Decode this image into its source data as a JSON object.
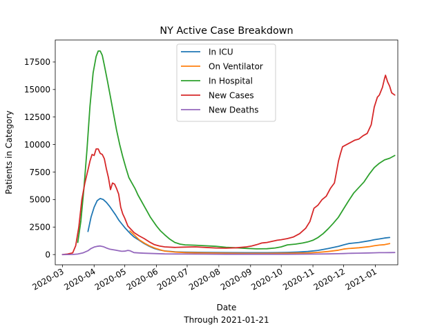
{
  "chart_data": {
    "type": "line",
    "title": "NY Active Case Breakdown",
    "xlabel": "Date",
    "xlabel_note": "Through 2021-01-21",
    "ylabel": "Patients in Category",
    "x_ticks": [
      "2020-03",
      "2020-04",
      "2020-05",
      "2020-06",
      "2020-07",
      "2020-08",
      "2020-09",
      "2020-10",
      "2020-11",
      "2020-12",
      "2021-01"
    ],
    "x_tick_positions": [
      0,
      31,
      61,
      92,
      122,
      153,
      184,
      214,
      245,
      275,
      306
    ],
    "y_ticks": [
      "0",
      "2500",
      "5000",
      "7500",
      "10000",
      "12500",
      "15000",
      "17500"
    ],
    "y_tick_values": [
      0,
      2500,
      5000,
      7500,
      10000,
      12500,
      15000,
      17500
    ],
    "xlim": [
      -7,
      328
    ],
    "ylim": [
      -930,
      19500
    ],
    "legend_position": "upper-center",
    "series": [
      {
        "name": "In ICU",
        "color": "#1f77b4",
        "points": [
          [
            25,
            2100
          ],
          [
            28,
            3400
          ],
          [
            31,
            4300
          ],
          [
            34,
            4900
          ],
          [
            37,
            5100
          ],
          [
            40,
            5000
          ],
          [
            43,
            4750
          ],
          [
            46,
            4400
          ],
          [
            49,
            4000
          ],
          [
            52,
            3600
          ],
          [
            55,
            3150
          ],
          [
            58,
            2800
          ],
          [
            61,
            2450
          ],
          [
            64,
            2150
          ],
          [
            67,
            1850
          ],
          [
            70,
            1600
          ],
          [
            75,
            1300
          ],
          [
            80,
            1000
          ],
          [
            85,
            750
          ],
          [
            90,
            550
          ],
          [
            95,
            420
          ],
          [
            100,
            330
          ],
          [
            110,
            250
          ],
          [
            120,
            220
          ],
          [
            140,
            200
          ],
          [
            160,
            180
          ],
          [
            180,
            170
          ],
          [
            200,
            170
          ],
          [
            210,
            180
          ],
          [
            220,
            200
          ],
          [
            230,
            230
          ],
          [
            240,
            280
          ],
          [
            250,
            380
          ],
          [
            260,
            550
          ],
          [
            270,
            750
          ],
          [
            275,
            880
          ],
          [
            280,
            1000
          ],
          [
            290,
            1100
          ],
          [
            300,
            1250
          ],
          [
            305,
            1350
          ],
          [
            310,
            1420
          ],
          [
            315,
            1500
          ],
          [
            320,
            1550
          ]
        ]
      },
      {
        "name": "On Ventilator",
        "color": "#ff7f0e",
        "points": [
          [
            66,
            2150
          ],
          [
            70,
            1800
          ],
          [
            75,
            1350
          ],
          [
            80,
            1050
          ],
          [
            85,
            800
          ],
          [
            90,
            600
          ],
          [
            95,
            450
          ],
          [
            100,
            320
          ],
          [
            110,
            230
          ],
          [
            120,
            180
          ],
          [
            140,
            150
          ],
          [
            160,
            130
          ],
          [
            180,
            110
          ],
          [
            200,
            110
          ],
          [
            220,
            120
          ],
          [
            240,
            150
          ],
          [
            250,
            200
          ],
          [
            260,
            280
          ],
          [
            270,
            400
          ],
          [
            275,
            500
          ],
          [
            280,
            550
          ],
          [
            290,
            620
          ],
          [
            300,
            720
          ],
          [
            305,
            800
          ],
          [
            310,
            860
          ],
          [
            315,
            900
          ],
          [
            320,
            1000
          ]
        ]
      },
      {
        "name": "In Hospital",
        "color": "#2ca02c",
        "points": [
          [
            15,
            1100
          ],
          [
            18,
            3000
          ],
          [
            21,
            6000
          ],
          [
            24,
            9500
          ],
          [
            27,
            13500
          ],
          [
            30,
            16500
          ],
          [
            33,
            18000
          ],
          [
            35,
            18500
          ],
          [
            37,
            18500
          ],
          [
            39,
            18100
          ],
          [
            41,
            17200
          ],
          [
            44,
            15800
          ],
          [
            47,
            14300
          ],
          [
            50,
            12800
          ],
          [
            53,
            11300
          ],
          [
            56,
            10000
          ],
          [
            59,
            8900
          ],
          [
            62,
            7900
          ],
          [
            65,
            7000
          ],
          [
            68,
            6500
          ],
          [
            71,
            6000
          ],
          [
            74,
            5400
          ],
          [
            77,
            4900
          ],
          [
            80,
            4400
          ],
          [
            83,
            3900
          ],
          [
            86,
            3400
          ],
          [
            89,
            3000
          ],
          [
            92,
            2600
          ],
          [
            96,
            2150
          ],
          [
            100,
            1800
          ],
          [
            105,
            1400
          ],
          [
            110,
            1100
          ],
          [
            115,
            950
          ],
          [
            120,
            880
          ],
          [
            130,
            850
          ],
          [
            140,
            800
          ],
          [
            150,
            750
          ],
          [
            160,
            660
          ],
          [
            170,
            620
          ],
          [
            180,
            560
          ],
          [
            190,
            520
          ],
          [
            200,
            530
          ],
          [
            208,
            600
          ],
          [
            214,
            700
          ],
          [
            220,
            880
          ],
          [
            228,
            950
          ],
          [
            235,
            1050
          ],
          [
            240,
            1150
          ],
          [
            245,
            1300
          ],
          [
            250,
            1550
          ],
          [
            255,
            1900
          ],
          [
            260,
            2350
          ],
          [
            265,
            2850
          ],
          [
            270,
            3400
          ],
          [
            275,
            4150
          ],
          [
            280,
            4900
          ],
          [
            285,
            5600
          ],
          [
            290,
            6100
          ],
          [
            295,
            6600
          ],
          [
            300,
            7300
          ],
          [
            305,
            7900
          ],
          [
            310,
            8300
          ],
          [
            315,
            8600
          ],
          [
            320,
            8750
          ],
          [
            325,
            9000
          ]
        ]
      },
      {
        "name": "New Cases",
        "color": "#d62728",
        "points": [
          [
            0,
            0
          ],
          [
            5,
            50
          ],
          [
            10,
            150
          ],
          [
            13,
            800
          ],
          [
            16,
            2500
          ],
          [
            19,
            5000
          ],
          [
            22,
            6500
          ],
          [
            25,
            7700
          ],
          [
            27,
            8500
          ],
          [
            29,
            9100
          ],
          [
            31,
            9000
          ],
          [
            33,
            9600
          ],
          [
            35,
            9600
          ],
          [
            37,
            9200
          ],
          [
            39,
            9100
          ],
          [
            41,
            8700
          ],
          [
            43,
            7800
          ],
          [
            45,
            7000
          ],
          [
            47,
            5900
          ],
          [
            49,
            6500
          ],
          [
            51,
            6400
          ],
          [
            53,
            6000
          ],
          [
            55,
            5500
          ],
          [
            57,
            4300
          ],
          [
            59,
            3700
          ],
          [
            61,
            3300
          ],
          [
            64,
            2600
          ],
          [
            67,
            2300
          ],
          [
            70,
            2000
          ],
          [
            75,
            1700
          ],
          [
            80,
            1450
          ],
          [
            85,
            1150
          ],
          [
            90,
            900
          ],
          [
            95,
            780
          ],
          [
            100,
            700
          ],
          [
            110,
            650
          ],
          [
            120,
            680
          ],
          [
            130,
            700
          ],
          [
            140,
            650
          ],
          [
            150,
            600
          ],
          [
            160,
            580
          ],
          [
            170,
            620
          ],
          [
            175,
            660
          ],
          [
            180,
            700
          ],
          [
            185,
            780
          ],
          [
            190,
            900
          ],
          [
            195,
            1050
          ],
          [
            200,
            1100
          ],
          [
            205,
            1200
          ],
          [
            210,
            1300
          ],
          [
            214,
            1350
          ],
          [
            220,
            1450
          ],
          [
            226,
            1600
          ],
          [
            232,
            1900
          ],
          [
            238,
            2400
          ],
          [
            242,
            3000
          ],
          [
            246,
            4200
          ],
          [
            250,
            4500
          ],
          [
            254,
            5000
          ],
          [
            258,
            5300
          ],
          [
            262,
            6000
          ],
          [
            266,
            6500
          ],
          [
            268,
            7500
          ],
          [
            270,
            8500
          ],
          [
            272,
            9200
          ],
          [
            274,
            9800
          ],
          [
            278,
            10000
          ],
          [
            282,
            10200
          ],
          [
            286,
            10400
          ],
          [
            290,
            10500
          ],
          [
            294,
            10800
          ],
          [
            298,
            11000
          ],
          [
            302,
            11800
          ],
          [
            305,
            13400
          ],
          [
            308,
            14300
          ],
          [
            310,
            14500
          ],
          [
            313,
            15200
          ],
          [
            315,
            16000
          ],
          [
            316,
            16300
          ],
          [
            318,
            15700
          ],
          [
            320,
            15300
          ],
          [
            322,
            14700
          ],
          [
            325,
            14500
          ]
        ]
      },
      {
        "name": "New Deaths",
        "color": "#9467bd",
        "points": [
          [
            0,
            0
          ],
          [
            10,
            10
          ],
          [
            15,
            50
          ],
          [
            20,
            150
          ],
          [
            25,
            350
          ],
          [
            28,
            550
          ],
          [
            31,
            680
          ],
          [
            34,
            750
          ],
          [
            37,
            780
          ],
          [
            40,
            720
          ],
          [
            43,
            600
          ],
          [
            46,
            500
          ],
          [
            49,
            450
          ],
          [
            52,
            400
          ],
          [
            55,
            350
          ],
          [
            58,
            300
          ],
          [
            61,
            310
          ],
          [
            64,
            380
          ],
          [
            66,
            350
          ],
          [
            70,
            180
          ],
          [
            75,
            150
          ],
          [
            80,
            120
          ],
          [
            90,
            90
          ],
          [
            100,
            60
          ],
          [
            120,
            50
          ],
          [
            140,
            40
          ],
          [
            160,
            30
          ],
          [
            180,
            30
          ],
          [
            200,
            30
          ],
          [
            220,
            30
          ],
          [
            240,
            40
          ],
          [
            250,
            50
          ],
          [
            260,
            60
          ],
          [
            270,
            80
          ],
          [
            275,
            90
          ],
          [
            280,
            110
          ],
          [
            290,
            130
          ],
          [
            300,
            150
          ],
          [
            305,
            160
          ],
          [
            310,
            170
          ],
          [
            315,
            175
          ],
          [
            320,
            180
          ],
          [
            325,
            185
          ]
        ]
      }
    ]
  }
}
